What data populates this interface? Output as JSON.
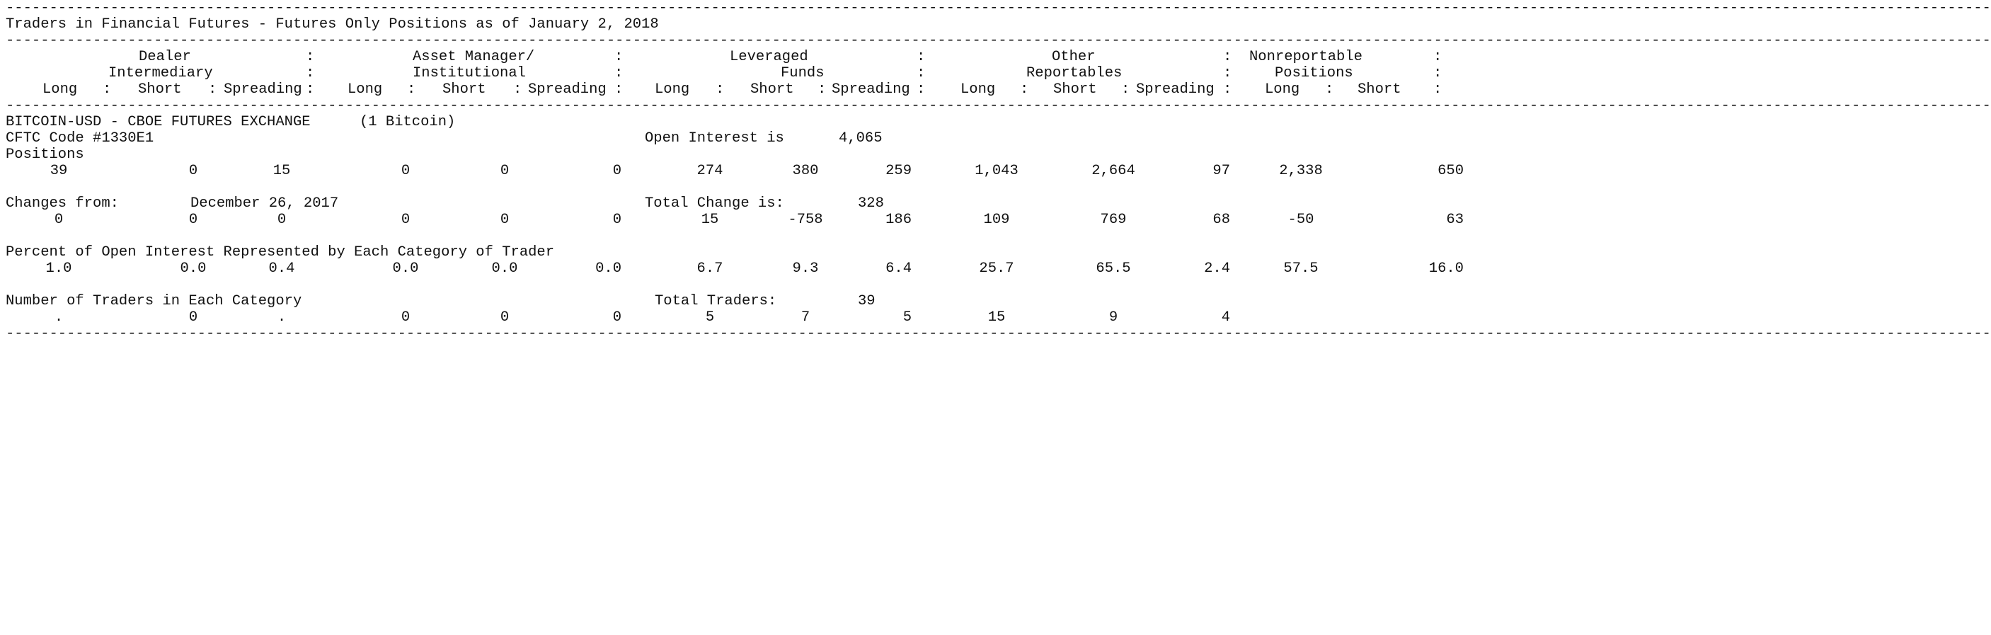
{
  "divider": "------------------------------------------------------------------------------------------------------------------------------------------------------------------------------------------------------------------------------------",
  "title": "Traders in Financial Futures - Futures Only Positions as of January 2, 2018",
  "header": {
    "dealer": [
      "Dealer",
      "Intermediary"
    ],
    "asset_manager": [
      "Asset Manager/",
      "Institutional"
    ],
    "leveraged": [
      "Leveraged",
      "Funds"
    ],
    "other": [
      "Other",
      "Reportables"
    ],
    "nonreportable": [
      "Nonreportable",
      "Positions"
    ],
    "sep": ":",
    "sub_labels": {
      "long": "Long",
      "short": "Short",
      "spreading": "Spreading"
    }
  },
  "contract": {
    "name": "BITCOIN-USD - CBOE FUTURES EXCHANGE",
    "unit": "(1 Bitcoin)",
    "code": "CFTC Code #1330E1",
    "open_interest_label": "Open Interest is",
    "open_interest_value": "4,065"
  },
  "positions": {
    "label": "Positions",
    "values": [
      "39",
      "0",
      "15",
      "0",
      "0",
      "0",
      "274",
      "380",
      "259",
      "1,043",
      "2,664",
      "97",
      "2,338",
      "650"
    ]
  },
  "changes": {
    "label": "Changes from:",
    "date": "December 26, 2017",
    "total_label": "Total Change is:",
    "total_value": "328",
    "values": [
      "0",
      "0",
      "0",
      "0",
      "0",
      "0",
      "15",
      "-758",
      "186",
      "109",
      "769",
      "68",
      "-50",
      "63"
    ]
  },
  "percent": {
    "label": "Percent of Open Interest Represented by Each Category of Trader",
    "values": [
      "1.0",
      "0.0",
      "0.4",
      "0.0",
      "0.0",
      "0.0",
      "6.7",
      "9.3",
      "6.4",
      "25.7",
      "65.5",
      "2.4",
      "57.5",
      "16.0"
    ]
  },
  "traders": {
    "label": "Number of Traders in Each Category",
    "total_label": "Total Traders:",
    "total_value": "39",
    "values": [
      ".",
      "0",
      ".",
      "0",
      "0",
      "0",
      "5",
      "7",
      "5",
      "15",
      "9",
      "4",
      "",
      ""
    ]
  }
}
